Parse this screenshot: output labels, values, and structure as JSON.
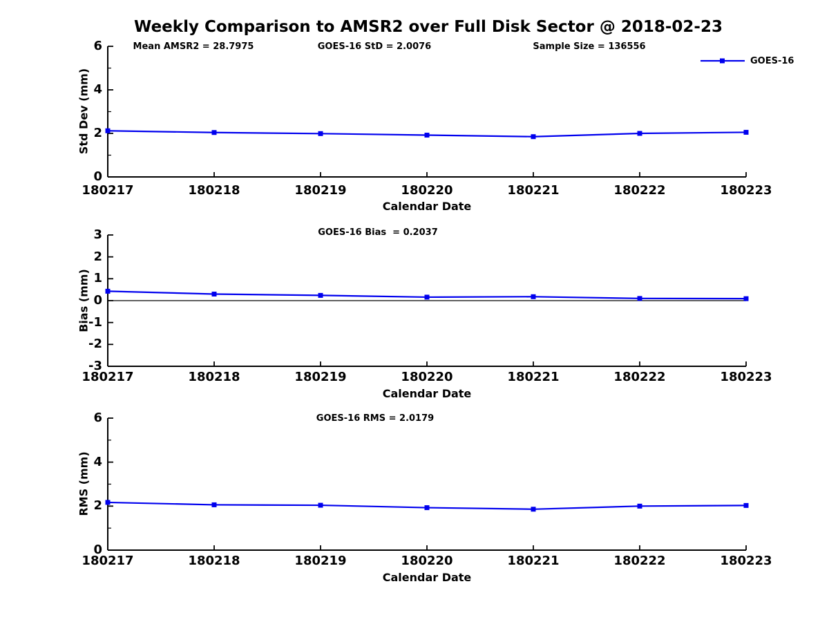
{
  "figure": {
    "title": "Weekly Comparison to AMSR2 over Full Disk Sector @ 2018-02-23",
    "legend_label": "GOES-16",
    "line_color": "#0000EE",
    "axis_color": "#000000"
  },
  "chart_data": [
    {
      "type": "line",
      "title": "",
      "annotations": [
        "Mean AMSR2 = 28.7975",
        "GOES-16 StD = 2.0076",
        "Sample Size = 136556"
      ],
      "categories": [
        "180217",
        "180218",
        "180219",
        "180220",
        "180221",
        "180222",
        "180223"
      ],
      "series": [
        {
          "name": "GOES-16",
          "values": [
            2.12,
            2.04,
            1.99,
            1.92,
            1.85,
            2.0,
            2.05
          ]
        }
      ],
      "xlabel": "Calendar Date",
      "ylabel": "Std Dev (mm)",
      "ylim": [
        0,
        6
      ],
      "yticks": [
        0,
        2,
        4,
        6
      ],
      "yminor": [
        1,
        3,
        5
      ],
      "zero_line": false,
      "grid": false,
      "legend_position": "top-right"
    },
    {
      "type": "line",
      "title": "GOES-16 Bias  = 0.2037",
      "annotations": [
        "GOES-16 Bias  = 0.2037"
      ],
      "categories": [
        "180217",
        "180218",
        "180219",
        "180220",
        "180221",
        "180222",
        "180223"
      ],
      "series": [
        {
          "name": "GOES-16",
          "values": [
            0.43,
            0.3,
            0.24,
            0.16,
            0.18,
            0.1,
            0.09
          ]
        }
      ],
      "xlabel": "Calendar Date",
      "ylabel": "Bias (mm)",
      "ylim": [
        -3,
        3
      ],
      "yticks": [
        -3,
        -2,
        -1,
        0,
        1,
        2,
        3
      ],
      "yminor": [],
      "zero_line": true,
      "grid": false,
      "legend_position": "none"
    },
    {
      "type": "line",
      "title": "GOES-16 RMS = 2.0179",
      "annotations": [
        "GOES-16 RMS = 2.0179"
      ],
      "categories": [
        "180217",
        "180218",
        "180219",
        "180220",
        "180221",
        "180222",
        "180223"
      ],
      "series": [
        {
          "name": "GOES-16",
          "values": [
            2.17,
            2.06,
            2.04,
            1.93,
            1.86,
            2.0,
            2.03
          ]
        }
      ],
      "xlabel": "Calendar Date",
      "ylabel": "RMS (mm)",
      "ylim": [
        0,
        6
      ],
      "yticks": [
        0,
        2,
        4,
        6
      ],
      "yminor": [
        1,
        3,
        5
      ],
      "zero_line": false,
      "grid": false,
      "legend_position": "none"
    }
  ]
}
